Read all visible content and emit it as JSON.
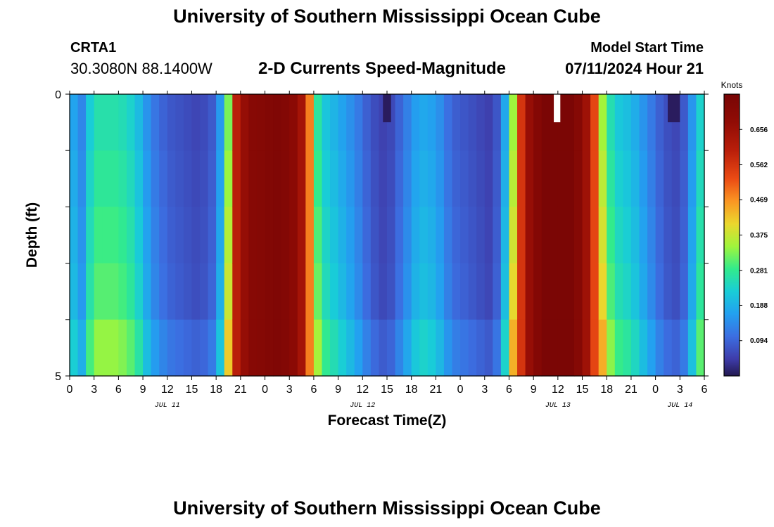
{
  "header": {
    "title": "University of Southern Mississippi Ocean Cube",
    "station_id": "CRTA1",
    "coordinates": "30.3080N  88.1400W",
    "subtitle": "2-D Currents Speed-Magnitude",
    "model_start_label": "Model Start Time",
    "model_start_value": "07/11/2024 Hour 21"
  },
  "footer": {
    "title": "University of Southern Mississippi Ocean Cube"
  },
  "chart_data": {
    "type": "heatmap",
    "title": "2-D Currents Speed-Magnitude",
    "xlabel": "Forecast Time(Z)",
    "ylabel": "Depth (ft)",
    "x_hours_from_jul11_00z": [
      0,
      78
    ],
    "y_range": [
      0,
      5
    ],
    "y_tick_labels": [
      "0",
      "5"
    ],
    "x_tick_labels": [
      "0",
      "3",
      "6",
      "9",
      "12",
      "15",
      "18",
      "21",
      "0",
      "3",
      "6",
      "9",
      "12",
      "15",
      "18",
      "21",
      "0",
      "3",
      "6",
      "9",
      "12",
      "15",
      "18",
      "21",
      "0",
      "3",
      "6"
    ],
    "date_labels": [
      {
        "text": "JUL 11",
        "hour": 12
      },
      {
        "text": "JUL 12",
        "hour": 36
      },
      {
        "text": "JUL 13",
        "hour": 60
      },
      {
        "text": "JUL 14",
        "hour": 75
      }
    ],
    "colorbar": {
      "label": "Knots",
      "range": [
        0,
        0.75
      ],
      "ticks": [
        "0.094",
        "0.188",
        "0.281",
        "0.375",
        "0.469",
        "0.562",
        "0.656"
      ]
    },
    "time_profile_knots": [
      {
        "h": 0,
        "v": 0.22
      },
      {
        "h": 0.8,
        "v": 0.17
      },
      {
        "h": 1.5,
        "v": 0.15
      },
      {
        "h": 2.5,
        "v": 0.25
      },
      {
        "h": 3.5,
        "v": 0.29
      },
      {
        "h": 6,
        "v": 0.29
      },
      {
        "h": 8,
        "v": 0.25
      },
      {
        "h": 10,
        "v": 0.14
      },
      {
        "h": 12,
        "v": 0.09
      },
      {
        "h": 16,
        "v": 0.06
      },
      {
        "h": 18,
        "v": 0.1
      },
      {
        "h": 18.8,
        "v": 0.22
      },
      {
        "h": 19.5,
        "v": 0.36
      },
      {
        "h": 20.5,
        "v": 0.6
      },
      {
        "h": 22,
        "v": 0.7
      },
      {
        "h": 26,
        "v": 0.73
      },
      {
        "h": 28,
        "v": 0.68
      },
      {
        "h": 29,
        "v": 0.6
      },
      {
        "h": 29.6,
        "v": 0.46
      },
      {
        "h": 30,
        "v": 0.35
      },
      {
        "h": 31,
        "v": 0.25
      },
      {
        "h": 33,
        "v": 0.2
      },
      {
        "h": 35,
        "v": 0.15
      },
      {
        "h": 37,
        "v": 0.08
      },
      {
        "h": 39,
        "v": 0.05
      },
      {
        "h": 41,
        "v": 0.12
      },
      {
        "h": 43,
        "v": 0.2
      },
      {
        "h": 45,
        "v": 0.18
      },
      {
        "h": 47,
        "v": 0.1
      },
      {
        "h": 52,
        "v": 0.05
      },
      {
        "h": 53,
        "v": 0.12
      },
      {
        "h": 54,
        "v": 0.27
      },
      {
        "h": 54.8,
        "v": 0.45
      },
      {
        "h": 56,
        "v": 0.64
      },
      {
        "h": 58,
        "v": 0.74
      },
      {
        "h": 62,
        "v": 0.74
      },
      {
        "h": 64,
        "v": 0.62
      },
      {
        "h": 65,
        "v": 0.45
      },
      {
        "h": 66,
        "v": 0.32
      },
      {
        "h": 67,
        "v": 0.25
      },
      {
        "h": 69,
        "v": 0.22
      },
      {
        "h": 71,
        "v": 0.15
      },
      {
        "h": 73,
        "v": 0.08
      },
      {
        "h": 75,
        "v": 0.06
      },
      {
        "h": 76,
        "v": 0.12
      },
      {
        "h": 77,
        "v": 0.22
      },
      {
        "h": 78,
        "v": 0.3
      }
    ],
    "surface_dark_patches_hours": [
      [
        38.5,
        39.5
      ],
      [
        73.5,
        75.0
      ]
    ],
    "missing_patch_hours": [
      59.5,
      60.3
    ]
  }
}
